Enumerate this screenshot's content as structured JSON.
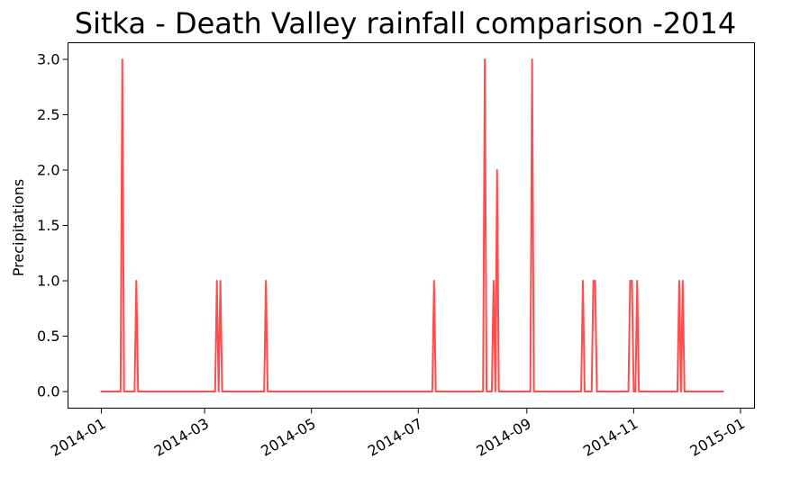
{
  "chart_data": {
    "type": "line",
    "title": "Sitka - Death Valley rainfall comparison -2014",
    "xlabel": "",
    "ylabel": "Precipitations",
    "x_type": "date",
    "xlim": [
      "2013-12-13",
      "2015-01-09"
    ],
    "ylim": [
      -0.15,
      3.15
    ],
    "x_ticks": [
      "2014-01",
      "2014-03",
      "2014-05",
      "2014-07",
      "2014-09",
      "2014-11",
      "2015-01"
    ],
    "y_ticks": [
      "0.0",
      "0.5",
      "1.0",
      "1.5",
      "2.0",
      "2.5",
      "3.0"
    ],
    "grid": false,
    "line_color": "#ff4d4d",
    "series": [
      {
        "x": [
          "2014-01-01",
          "2014-01-12",
          "2014-01-13",
          "2014-01-14",
          "2014-01-20",
          "2014-01-21",
          "2014-01-22",
          "2014-03-07",
          "2014-03-08",
          "2014-03-09",
          "2014-03-10",
          "2014-03-11",
          "2014-04-04",
          "2014-04-05",
          "2014-04-06",
          "2014-07-09",
          "2014-07-10",
          "2014-07-11",
          "2014-08-07",
          "2014-08-08",
          "2014-08-09",
          "2014-08-12",
          "2014-08-13",
          "2014-08-14",
          "2014-08-15",
          "2014-08-16",
          "2014-09-03",
          "2014-09-04",
          "2014-09-05",
          "2014-10-02",
          "2014-10-03",
          "2014-10-04",
          "2014-10-08",
          "2014-10-09",
          "2014-10-10",
          "2014-10-11",
          "2014-10-29",
          "2014-10-30",
          "2014-10-31",
          "2014-11-01",
          "2014-11-02",
          "2014-11-03",
          "2014-11-04",
          "2014-11-26",
          "2014-11-27",
          "2014-11-28",
          "2014-11-29",
          "2014-11-30",
          "2014-12-22"
        ],
        "y": [
          0,
          0,
          3,
          0,
          0,
          1,
          0,
          0,
          1,
          0,
          1,
          0,
          0,
          1,
          0,
          0,
          1,
          0,
          0,
          3,
          0,
          0,
          1,
          0,
          2,
          0,
          0,
          3,
          0,
          0,
          1,
          0,
          0,
          1,
          1,
          0,
          0,
          1,
          1,
          0,
          0,
          1,
          0,
          0,
          1,
          0,
          1,
          0,
          0
        ]
      }
    ]
  }
}
